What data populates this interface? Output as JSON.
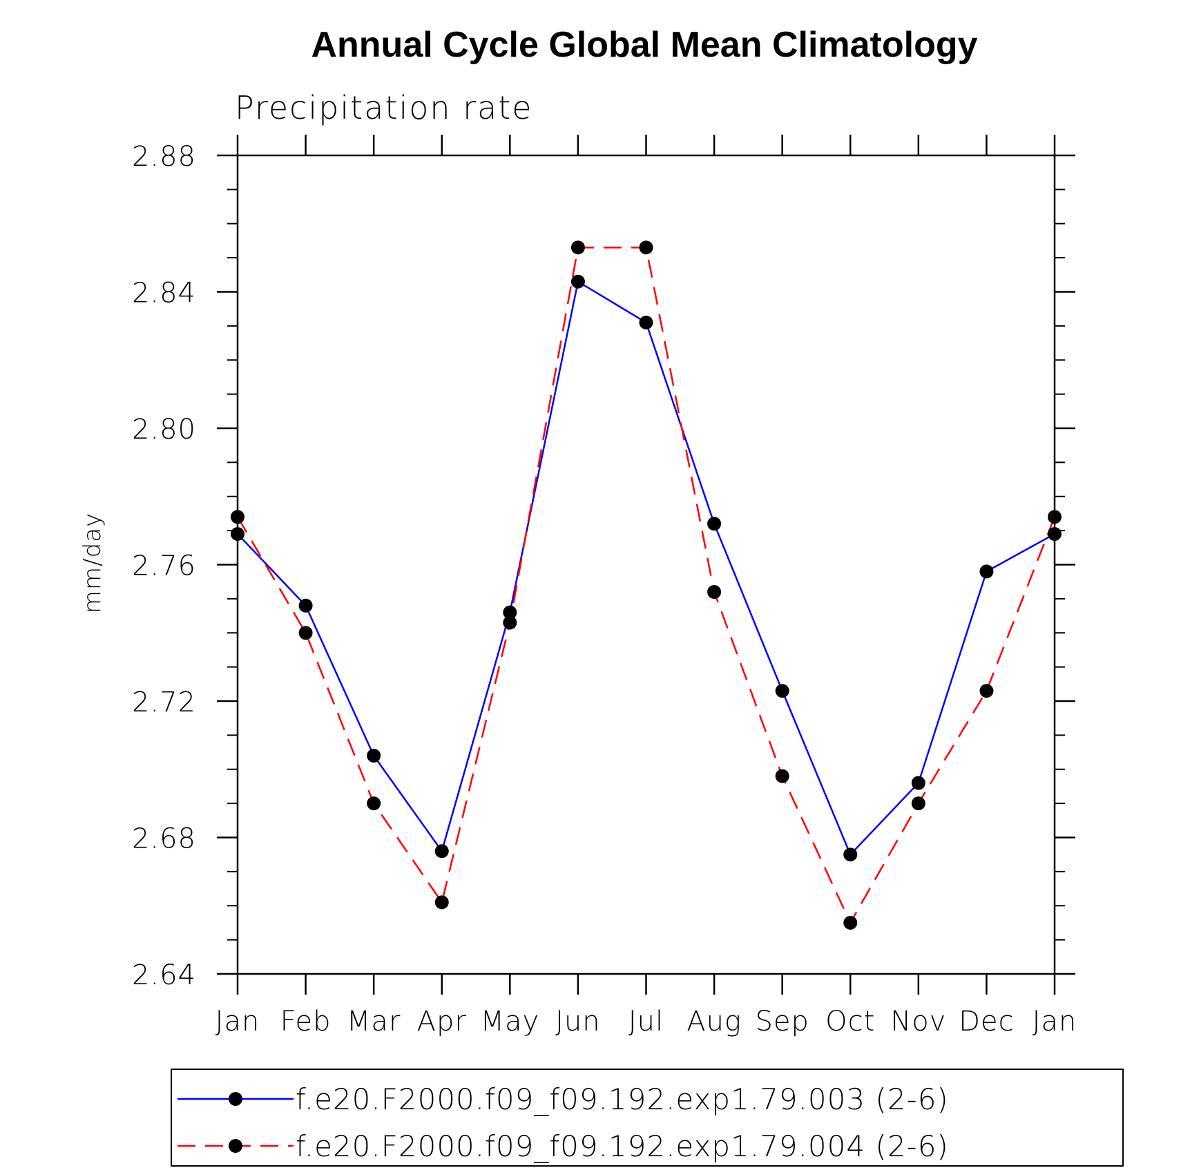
{
  "chart_data": {
    "type": "line",
    "title": "Annual Cycle Global Mean Climatology",
    "subtitle": "Precipitation rate",
    "xlabel": "",
    "ylabel": "mm/day",
    "categories": [
      "Jan",
      "Feb",
      "Mar",
      "Apr",
      "May",
      "Jun",
      "Jul",
      "Aug",
      "Sep",
      "Oct",
      "Nov",
      "Dec",
      "Jan"
    ],
    "ylim": [
      2.64,
      2.88
    ],
    "yticks": [
      "2.64",
      "2.68",
      "2.72",
      "2.76",
      "2.80",
      "2.84",
      "2.88"
    ],
    "legend_position": "bottom",
    "series": [
      {
        "name": "f.e20.F2000.f09_f09.192.exp1.79.003 (2-6)",
        "color": "#0000ff",
        "dash": "solid",
        "values": [
          2.769,
          2.748,
          2.704,
          2.676,
          2.746,
          2.843,
          2.831,
          2.772,
          2.723,
          2.675,
          2.696,
          2.758,
          2.769
        ]
      },
      {
        "name": "f.e20.F2000.f09_f09.192.exp1.79.004 (2-6)",
        "color": "#ff0000",
        "dash": "dashed",
        "values": [
          2.774,
          2.74,
          2.69,
          2.661,
          2.743,
          2.853,
          2.853,
          2.752,
          2.698,
          2.655,
          2.69,
          2.723,
          2.774
        ]
      }
    ]
  }
}
